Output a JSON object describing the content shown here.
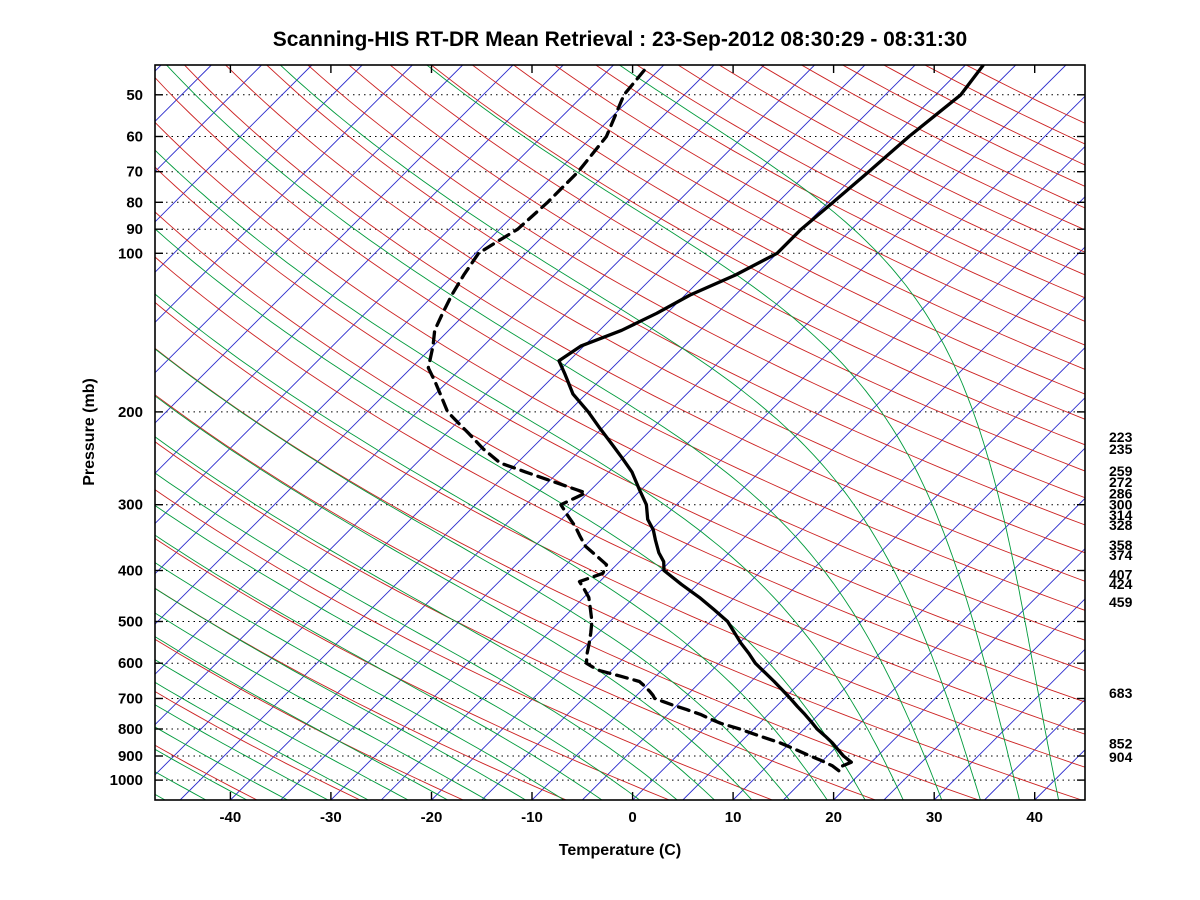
{
  "title": "Scanning-HIS RT-DR Mean Retrieval : 23-Sep-2012 08:30:29 - 08:31:30",
  "chart_data": {
    "type": "line",
    "subtype": "skew-t-log-p",
    "xlabel": "Temperature (C)",
    "ylabel": "Pressure (mb)",
    "x_ticks": [
      -40,
      -30,
      -20,
      -10,
      0,
      10,
      20,
      30,
      40
    ],
    "pressure_ticks": [
      50,
      60,
      70,
      80,
      90,
      100,
      200,
      300,
      400,
      500,
      600,
      700,
      800,
      900,
      1000
    ],
    "pressure_range_mb": [
      43.9,
      1091
    ],
    "bottom_edge_temp_range_c": [
      -47.5,
      45
    ],
    "skew": 1.0,
    "grid": "dotted-isobars",
    "legend_position": "none",
    "right_level_labels": [
      223,
      235,
      259,
      272,
      286,
      300,
      314,
      328,
      358,
      374,
      407,
      424,
      459,
      683,
      852,
      904
    ],
    "background": {
      "isotherms": {
        "start_c": -120,
        "end_c": 45,
        "step_c": 5,
        "color": "#2b2bcc"
      },
      "dry_adiabats": {
        "theta_start_k": 220,
        "theta_end_k": 570,
        "step_k": 10,
        "color": "#cc2222"
      },
      "moist_adiabats": {
        "thetaw_start_c": -52,
        "thetaw_end_c": 40,
        "step_c": 4,
        "color": "#009a3c"
      },
      "isobar_color": "#000000",
      "border_color": "#000000"
    },
    "series": [
      {
        "name": "temperature",
        "style": "solid",
        "color": "#000000",
        "points_p_t": [
          [
            940,
            17.5
          ],
          [
            925,
            18.0
          ],
          [
            900,
            16.6
          ],
          [
            875,
            15.4
          ],
          [
            850,
            14.2
          ],
          [
            825,
            12.8
          ],
          [
            800,
            11.3
          ],
          [
            775,
            10.0
          ],
          [
            750,
            8.6
          ],
          [
            725,
            7.1
          ],
          [
            700,
            5.6
          ],
          [
            675,
            4.0
          ],
          [
            650,
            2.3
          ],
          [
            625,
            0.5
          ],
          [
            600,
            -1.4
          ],
          [
            575,
            -3.0
          ],
          [
            550,
            -4.8
          ],
          [
            525,
            -6.5
          ],
          [
            500,
            -8.3
          ],
          [
            475,
            -10.8
          ],
          [
            450,
            -13.5
          ],
          [
            425,
            -16.6
          ],
          [
            400,
            -19.7
          ],
          [
            385,
            -20.6
          ],
          [
            370,
            -22.0
          ],
          [
            350,
            -23.6
          ],
          [
            335,
            -24.8
          ],
          [
            320,
            -26.4
          ],
          [
            300,
            -28.0
          ],
          [
            280,
            -30.3
          ],
          [
            260,
            -32.7
          ],
          [
            245,
            -35.0
          ],
          [
            230,
            -37.5
          ],
          [
            215,
            -40.2
          ],
          [
            200,
            -43.0
          ],
          [
            185,
            -46.3
          ],
          [
            170,
            -49.0
          ],
          [
            160,
            -51.0
          ],
          [
            150,
            -50.3
          ],
          [
            140,
            -47.8
          ],
          [
            130,
            -46.0
          ],
          [
            120,
            -44.5
          ],
          [
            110,
            -42.0
          ],
          [
            100,
            -40.0
          ],
          [
            90,
            -40.0
          ],
          [
            80,
            -39.5
          ],
          [
            70,
            -39.0
          ],
          [
            60,
            -38.5
          ],
          [
            50,
            -37.5
          ],
          [
            44,
            -38.2
          ]
        ]
      },
      {
        "name": "dewpoint",
        "style": "dashed",
        "color": "#000000",
        "points_p_t": [
          [
            960,
            17.6
          ],
          [
            940,
            16.5
          ],
          [
            920,
            15.0
          ],
          [
            900,
            13.3
          ],
          [
            875,
            11.2
          ],
          [
            850,
            9.0
          ],
          [
            825,
            6.3
          ],
          [
            800,
            3.6
          ],
          [
            780,
            1.1
          ],
          [
            765,
            -0.4
          ],
          [
            750,
            -1.8
          ],
          [
            735,
            -3.6
          ],
          [
            720,
            -5.5
          ],
          [
            710,
            -6.7
          ],
          [
            700,
            -7.9
          ],
          [
            690,
            -8.4
          ],
          [
            680,
            -9.0
          ],
          [
            665,
            -10.0
          ],
          [
            650,
            -11.1
          ],
          [
            635,
            -13.5
          ],
          [
            620,
            -16.1
          ],
          [
            610,
            -17.2
          ],
          [
            600,
            -18.2
          ],
          [
            575,
            -19.1
          ],
          [
            550,
            -19.9
          ],
          [
            525,
            -20.8
          ],
          [
            500,
            -21.8
          ],
          [
            475,
            -23.1
          ],
          [
            450,
            -24.5
          ],
          [
            435,
            -25.7
          ],
          [
            420,
            -27.0
          ],
          [
            405,
            -25.5
          ],
          [
            390,
            -26.0
          ],
          [
            375,
            -27.9
          ],
          [
            360,
            -29.9
          ],
          [
            345,
            -31.4
          ],
          [
            330,
            -32.9
          ],
          [
            315,
            -34.7
          ],
          [
            300,
            -36.5
          ],
          [
            285,
            -35.2
          ],
          [
            270,
            -40.0
          ],
          [
            260,
            -43.3
          ],
          [
            250,
            -46.7
          ],
          [
            235,
            -49.8
          ],
          [
            220,
            -52.7
          ],
          [
            210,
            -54.8
          ],
          [
            200,
            -57.0
          ],
          [
            185,
            -59.5
          ],
          [
            175,
            -61.3
          ],
          [
            165,
            -63.3
          ],
          [
            150,
            -65.0
          ],
          [
            140,
            -66.4
          ],
          [
            130,
            -67.3
          ],
          [
            120,
            -68.2
          ],
          [
            110,
            -69.0
          ],
          [
            100,
            -69.7
          ],
          [
            95,
            -69.0
          ],
          [
            90,
            -68.2
          ],
          [
            80,
            -67.9
          ],
          [
            70,
            -67.9
          ],
          [
            60,
            -68.6
          ],
          [
            50,
            -71.0
          ],
          [
            44,
            -71.5
          ]
        ]
      }
    ]
  }
}
